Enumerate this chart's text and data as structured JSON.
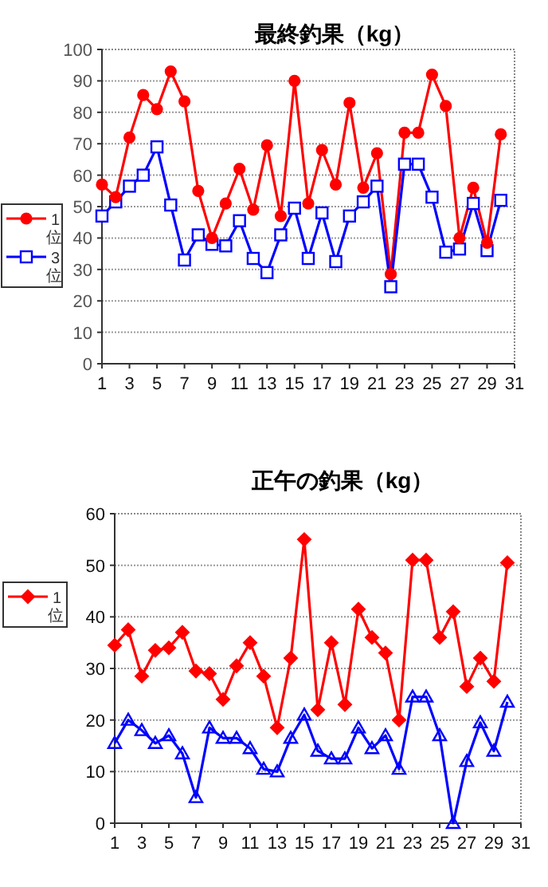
{
  "chart_data": [
    {
      "type": "line",
      "title": "最終釣果（kg）",
      "x": [
        1,
        2,
        3,
        4,
        5,
        6,
        7,
        8,
        9,
        10,
        11,
        12,
        13,
        14,
        15,
        16,
        17,
        18,
        19,
        20,
        21,
        22,
        23,
        24,
        25,
        26,
        27,
        28,
        29,
        30
      ],
      "xlim": [
        1,
        31
      ],
      "xticks": [
        1,
        3,
        5,
        7,
        9,
        11,
        13,
        15,
        17,
        19,
        21,
        23,
        25,
        27,
        29,
        31
      ],
      "ylim": [
        0,
        100
      ],
      "yticks": [
        0,
        10,
        20,
        30,
        40,
        50,
        60,
        70,
        80,
        90,
        100
      ],
      "grid": "y",
      "legend": "left",
      "series": [
        {
          "name": "1位",
          "color": "#ff0000",
          "marker": "circle",
          "values": [
            57,
            53,
            72,
            85.5,
            81,
            93,
            83.5,
            55,
            40,
            51,
            62,
            49,
            69.5,
            47,
            90,
            51,
            68,
            57,
            83,
            56,
            67,
            28.5,
            73.5,
            73.5,
            92,
            82,
            40,
            56,
            38.5,
            73
          ]
        },
        {
          "name": "3位",
          "color": "#0000ff",
          "marker": "square",
          "values": [
            47,
            51.5,
            56.5,
            60,
            69,
            50.5,
            33,
            41,
            38,
            37.5,
            45.5,
            33.5,
            29,
            41,
            49.5,
            33.5,
            48,
            32.5,
            47,
            51.5,
            56.5,
            24.5,
            63.5,
            63.5,
            53,
            35.5,
            36.5,
            51,
            36,
            52
          ]
        }
      ]
    },
    {
      "type": "line",
      "title": "正午の釣果（kg）",
      "x": [
        1,
        2,
        3,
        4,
        5,
        6,
        7,
        8,
        9,
        10,
        11,
        12,
        13,
        14,
        15,
        16,
        17,
        18,
        19,
        20,
        21,
        22,
        23,
        24,
        25,
        26,
        27,
        28,
        29,
        30
      ],
      "xlim": [
        1,
        31
      ],
      "xticks": [
        1,
        3,
        5,
        7,
        9,
        11,
        13,
        15,
        17,
        19,
        21,
        23,
        25,
        27,
        29,
        31
      ],
      "ylim": [
        0,
        60
      ],
      "yticks": [
        0,
        10,
        20,
        30,
        40,
        50,
        60
      ],
      "grid": "y",
      "legend": "left",
      "series": [
        {
          "name": "1位",
          "color": "#ff0000",
          "marker": "diamond",
          "values": [
            34.5,
            37.5,
            28.5,
            33.5,
            34,
            37,
            29.5,
            29,
            24,
            30.5,
            35,
            28.5,
            18.5,
            32,
            55,
            22,
            35,
            23,
            41.5,
            36,
            33,
            20,
            51,
            51,
            36,
            41,
            26.5,
            32,
            27.5,
            50.5
          ]
        },
        {
          "color": "#0000ff",
          "marker": "triangle",
          "values": [
            15.5,
            20,
            18,
            15.5,
            17,
            13.5,
            5,
            18.5,
            16.5,
            16.5,
            14.5,
            10.5,
            10,
            16.5,
            21,
            14,
            12.5,
            12.5,
            18.5,
            14.5,
            17,
            10.5,
            24.5,
            24.5,
            17,
            0,
            12,
            19.5,
            14,
            23.5
          ]
        }
      ]
    }
  ]
}
